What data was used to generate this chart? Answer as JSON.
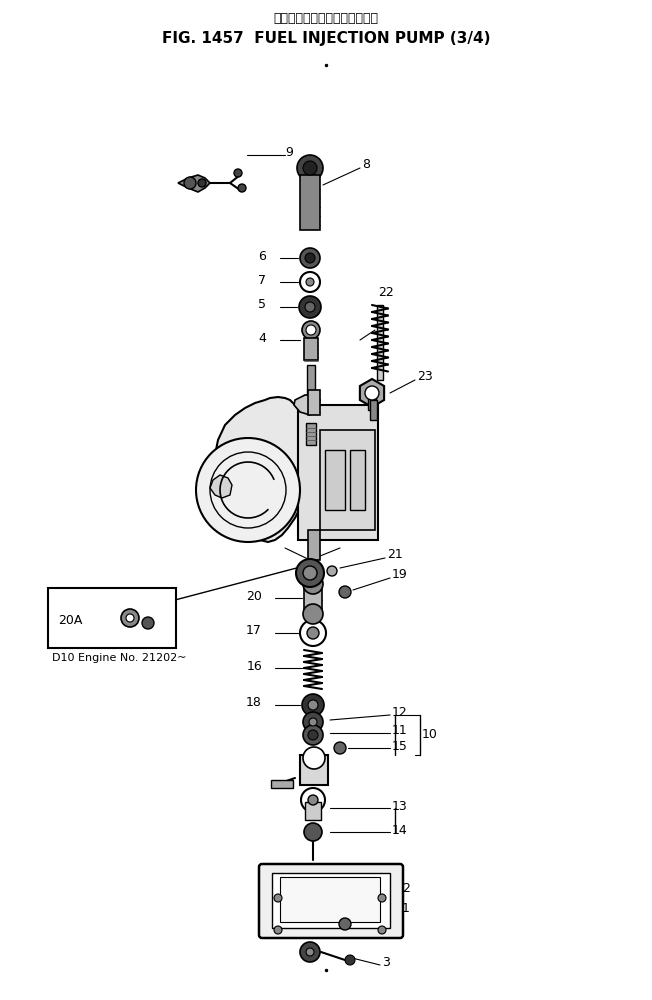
{
  "title_japanese": "フェルインジェクションポンプ",
  "title_english": "FIG. 1457  FUEL INJECTION PUMP (3/4)",
  "background_color": "#ffffff",
  "fig_width": 6.52,
  "fig_height": 10.0,
  "engine_note": "D10 Engine No. 21202~"
}
